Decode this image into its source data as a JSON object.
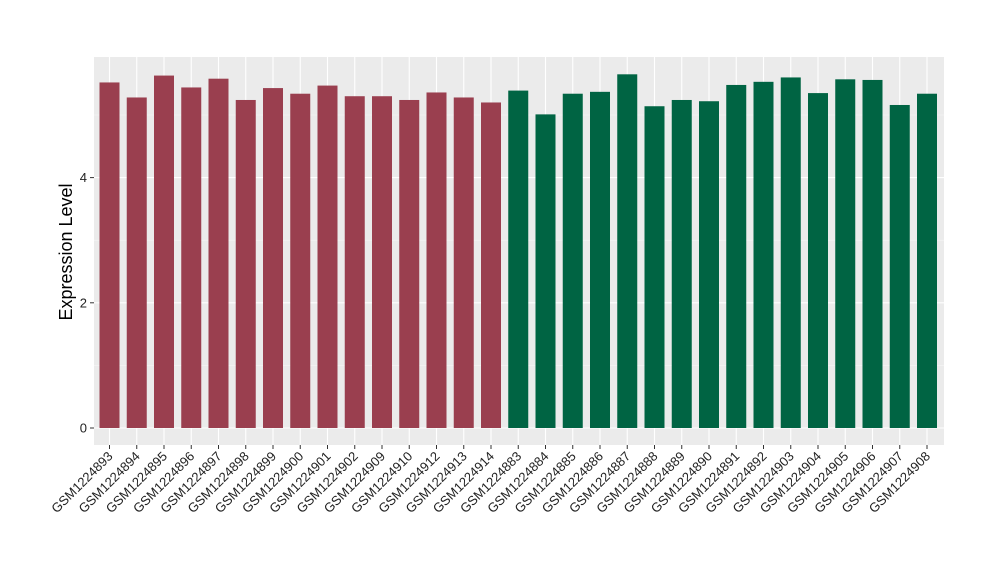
{
  "chart_data": {
    "type": "bar",
    "title": "",
    "xlabel": "",
    "ylabel": "Expression Level",
    "ylim": [
      0,
      6
    ],
    "yticks": [
      0,
      2,
      4
    ],
    "grid": true,
    "panel_background": "#ebebeb",
    "categories": [
      "GSM1224893",
      "GSM1224894",
      "GSM1224895",
      "GSM1224896",
      "GSM1224897",
      "GSM1224898",
      "GSM1224899",
      "GSM1224900",
      "GSM1224901",
      "GSM1224902",
      "GSM1224909",
      "GSM1224910",
      "GSM1224912",
      "GSM1224913",
      "GSM1224914",
      "GSM1224883",
      "GSM1224884",
      "GSM1224885",
      "GSM1224886",
      "GSM1224887",
      "GSM1224888",
      "GSM1224889",
      "GSM1224890",
      "GSM1224891",
      "GSM1224892",
      "GSM1224903",
      "GSM1224904",
      "GSM1224905",
      "GSM1224906",
      "GSM1224907",
      "GSM1224908"
    ],
    "values": [
      5.52,
      5.28,
      5.63,
      5.44,
      5.58,
      5.24,
      5.43,
      5.34,
      5.47,
      5.3,
      5.3,
      5.24,
      5.36,
      5.28,
      5.2,
      5.39,
      5.01,
      5.34,
      5.37,
      5.65,
      5.14,
      5.24,
      5.22,
      5.48,
      5.53,
      5.6,
      5.35,
      5.57,
      5.56,
      5.16,
      5.34
    ],
    "groups": [
      "group-1",
      "group-1",
      "group-1",
      "group-1",
      "group-1",
      "group-1",
      "group-1",
      "group-1",
      "group-1",
      "group-1",
      "group-1",
      "group-1",
      "group-1",
      "group-1",
      "group-1",
      "group-2",
      "group-2",
      "group-2",
      "group-2",
      "group-2",
      "group-2",
      "group-2",
      "group-2",
      "group-2",
      "group-2",
      "group-2",
      "group-2",
      "group-2",
      "group-2",
      "group-2",
      "group-2"
    ],
    "group_colors": {
      "group-1": "#9a3f4f",
      "group-2": "#006443"
    }
  }
}
